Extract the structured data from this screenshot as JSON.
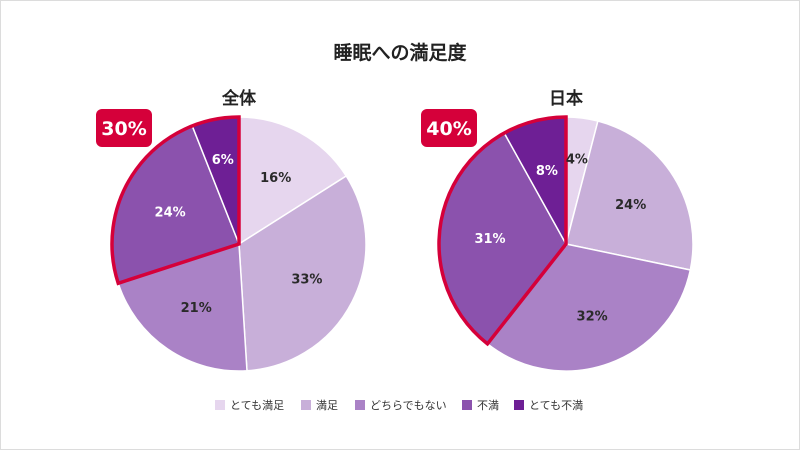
{
  "title": "睡眠への満足度",
  "colors": {
    "categories": [
      "#e6d6ee",
      "#c8afd9",
      "#aa82c6",
      "#8b52ad",
      "#6e1f95"
    ],
    "highlight": "#d5003a",
    "label_light_threshold": 3
  },
  "chart_data": [
    {
      "type": "pie",
      "subtitle": "全体",
      "categories": [
        "とても満足",
        "満足",
        "どちらでもない",
        "不満",
        "とても不満"
      ],
      "values": [
        16,
        33,
        21,
        24,
        6
      ],
      "value_labels": [
        "16%",
        "33%",
        "21%",
        "24%",
        "6%"
      ],
      "start": "12 o'clock",
      "direction": "clockwise",
      "highlight": {
        "categories": [
          "不満",
          "とても不満"
        ],
        "label": "30%"
      },
      "legend": "bottom"
    },
    {
      "type": "pie",
      "subtitle": "日本",
      "categories": [
        "とても満足",
        "満足",
        "どちらでもない",
        "不満",
        "とても不満"
      ],
      "values": [
        4,
        24,
        32,
        31,
        8
      ],
      "value_labels": [
        "4%",
        "24%",
        "32%",
        "31%",
        "8%"
      ],
      "start": "12 o'clock",
      "direction": "clockwise",
      "highlight": {
        "categories": [
          "不満",
          "とても不満"
        ],
        "label": "40%"
      },
      "legend": "bottom"
    }
  ],
  "legend": {
    "items": [
      "とても満足",
      "満足",
      "どちらでもない",
      "不満",
      "とても不満"
    ]
  }
}
